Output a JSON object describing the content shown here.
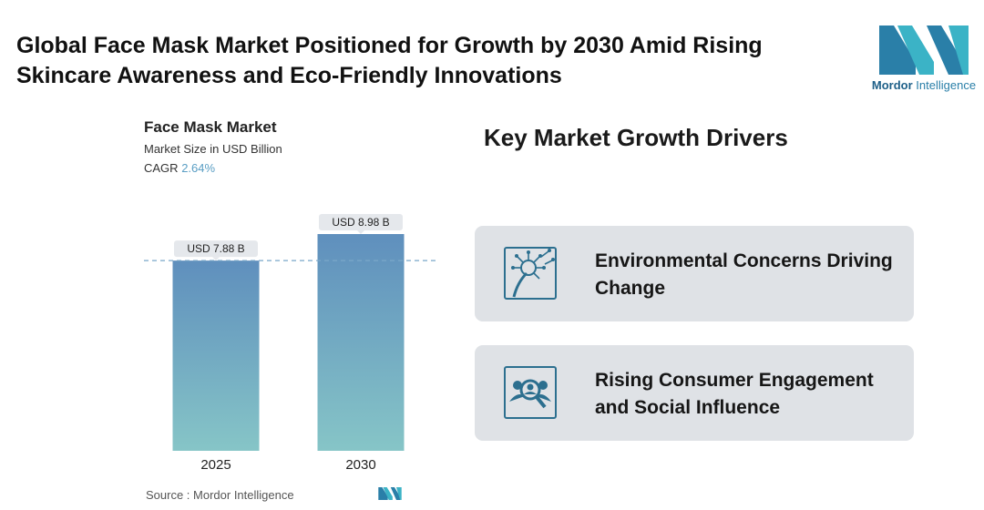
{
  "header": {
    "title": "Global Face Mask Market Positioned for Growth by 2030 Amid Rising Skincare Awareness and Eco-Friendly Innovations"
  },
  "logo": {
    "brand_bold": "Mordor",
    "brand_rest": " Intelligence"
  },
  "chart_header": {
    "title": "Face Mask Market",
    "subtitle": "Market Size in USD Billion",
    "cagr_label": "CAGR",
    "cagr_value": "2.64%"
  },
  "chart_data": {
    "type": "bar",
    "categories": [
      "2025",
      "2030"
    ],
    "values": [
      7.88,
      8.98
    ],
    "data_labels": [
      "USD 7.88 B",
      "USD 8.98 B"
    ],
    "unit": "USD Billion",
    "reference_line": 7.88,
    "grid": false,
    "legend": "none",
    "colors": {
      "bar_top": "#5f8fbd",
      "bar_bottom": "#86c5c7",
      "label_bg": "#e5e8ec",
      "dash": "#7aa7c8"
    }
  },
  "source": {
    "label": "Source :  Mordor Intelligence"
  },
  "drivers": {
    "title": "Key Market Growth Drivers",
    "items": [
      {
        "label": "Environmental Concerns Driving Change",
        "icon": "dandelion-icon"
      },
      {
        "label": "Rising Consumer Engagement and Social Influence",
        "icon": "people-magnifier-icon"
      }
    ]
  },
  "colors": {
    "accent": "#2a7fa8",
    "card_bg": "#dfe2e6",
    "icon_stroke": "#2c6f8f"
  }
}
